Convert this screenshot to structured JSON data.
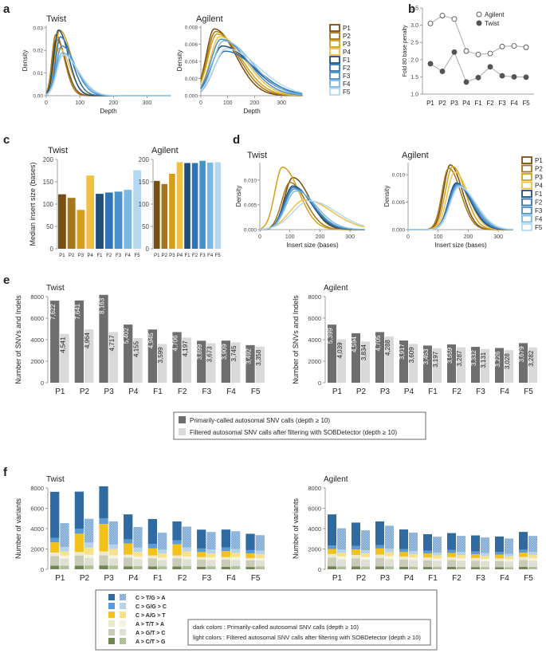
{
  "figure": {
    "panel_letters": [
      "a",
      "b",
      "c",
      "d",
      "e",
      "f"
    ],
    "colors": {
      "P1": "#7a4e0e",
      "P2": "#a6761d",
      "P3": "#d4a017",
      "P4": "#f0c043",
      "F1": "#1f4e79",
      "F2": "#2e75b6",
      "F3": "#4a90c8",
      "F4": "#7ab8e4",
      "F5": "#b5d8f2",
      "bar_dark": "#6e6e6e",
      "bar_light": "#d9d9d9"
    }
  },
  "chart_data": [
    {
      "id": "a-twist",
      "panel": "a",
      "type": "line",
      "title": "Twist",
      "xlabel": "Depth",
      "ylabel": "Density",
      "xlim": [
        0,
        370
      ],
      "ylim": [
        0,
        0.031
      ],
      "xticks": [
        0,
        100,
        200,
        300
      ],
      "yticks": [
        0.0,
        0.01,
        0.02,
        0.03
      ],
      "ytick_labels": [
        "0.00",
        "0.01",
        "0.02",
        "0.03"
      ],
      "curves": [
        {
          "name": "P1",
          "peak": 30,
          "sd_left": 12,
          "sd_right": 28,
          "height": 0.025
        },
        {
          "name": "P2",
          "peak": 28,
          "sd_left": 11,
          "sd_right": 26,
          "height": 0.027
        },
        {
          "name": "P3",
          "peak": 40,
          "sd_left": 14,
          "sd_right": 34,
          "height": 0.029
        },
        {
          "name": "P4",
          "peak": 38,
          "sd_left": 14,
          "sd_right": 32,
          "height": 0.021
        },
        {
          "name": "F1",
          "peak": 36,
          "sd_left": 13,
          "sd_right": 30,
          "height": 0.029
        },
        {
          "name": "F2",
          "peak": 42,
          "sd_left": 14,
          "sd_right": 34,
          "height": 0.026
        },
        {
          "name": "F3",
          "peak": 46,
          "sd_left": 16,
          "sd_right": 40,
          "height": 0.022
        },
        {
          "name": "F4",
          "peak": 48,
          "sd_left": 18,
          "sd_right": 44,
          "height": 0.019
        },
        {
          "name": "F5",
          "peak": 50,
          "sd_left": 18,
          "sd_right": 46,
          "height": 0.018
        }
      ]
    },
    {
      "id": "a-agilent",
      "panel": "a",
      "type": "line",
      "title": "Agilent",
      "xlabel": "Depth",
      "ylabel": "Density",
      "xlim": [
        0,
        380
      ],
      "ylim": [
        0,
        0.0082
      ],
      "xticks": [
        0,
        100,
        200,
        300
      ],
      "yticks": [
        0.0,
        0.002,
        0.004,
        0.006,
        0.008
      ],
      "ytick_labels": [
        "0.000",
        "0.002",
        "0.004",
        "0.006",
        "0.008"
      ],
      "curves": [
        {
          "name": "P1",
          "peak": 50,
          "sd_left": 30,
          "sd_right": 80,
          "height": 0.0078
        },
        {
          "name": "P2",
          "peak": 55,
          "sd_left": 32,
          "sd_right": 85,
          "height": 0.0075
        },
        {
          "name": "P3",
          "peak": 60,
          "sd_left": 34,
          "sd_right": 90,
          "height": 0.0072
        },
        {
          "name": "P4",
          "peak": 70,
          "sd_left": 36,
          "sd_right": 95,
          "height": 0.0069
        },
        {
          "name": "F1",
          "peak": 80,
          "sd_left": 40,
          "sd_right": 110,
          "height": 0.0058
        },
        {
          "name": "F2",
          "peak": 90,
          "sd_left": 42,
          "sd_right": 115,
          "height": 0.0052
        },
        {
          "name": "F3",
          "peak": 75,
          "sd_left": 38,
          "sd_right": 100,
          "height": 0.0066
        },
        {
          "name": "F4",
          "peak": 85,
          "sd_left": 40,
          "sd_right": 105,
          "height": 0.0064
        },
        {
          "name": "F5",
          "peak": 95,
          "sd_left": 45,
          "sd_right": 120,
          "height": 0.0055
        }
      ]
    },
    {
      "id": "a-legend",
      "panel": "a",
      "type": "legend",
      "entries": [
        "P1",
        "P2",
        "P3",
        "P4",
        "F1",
        "F2",
        "F3",
        "F4",
        "F5"
      ]
    },
    {
      "id": "b",
      "panel": "b",
      "type": "scatter",
      "ylabel": "Fold 80 base penalty",
      "categories": [
        "P1",
        "P2",
        "P3",
        "P4",
        "F1",
        "F2",
        "F3",
        "F4",
        "F5"
      ],
      "ylim": [
        1.0,
        3.5
      ],
      "yticks": [
        1.0,
        1.5,
        2.0,
        2.5,
        3.0,
        3.5
      ],
      "ytick_labels": [
        "1.0",
        "1.5",
        "2.0",
        "2.5",
        "3.0",
        "3.5"
      ],
      "series": [
        {
          "name": "Agilent",
          "marker": "open",
          "values": [
            3.05,
            3.28,
            3.18,
            2.25,
            2.15,
            2.18,
            2.38,
            2.4,
            2.36
          ]
        },
        {
          "name": "Twist",
          "marker": "filled",
          "values": [
            1.88,
            1.66,
            2.22,
            1.35,
            1.48,
            1.79,
            1.53,
            1.5,
            1.49
          ]
        }
      ]
    },
    {
      "id": "c-twist",
      "panel": "c",
      "type": "bar",
      "title": "Twist",
      "ylabel": "Median insert size (bases)",
      "categories": [
        "P1",
        "P2",
        "P3",
        "P4",
        "F1",
        "F2",
        "F3",
        "F4",
        "F5"
      ],
      "values": [
        122,
        114,
        87,
        164,
        123,
        126,
        128,
        132,
        176
      ],
      "ylim": [
        0,
        200
      ],
      "yticks": [
        0,
        50,
        100,
        150,
        200
      ]
    },
    {
      "id": "c-agilent",
      "panel": "c",
      "type": "bar",
      "title": "Agilent",
      "categories": [
        "P1",
        "P2",
        "P3",
        "P4",
        "F1",
        "F2",
        "F3",
        "F4",
        "F5"
      ],
      "values": [
        152,
        145,
        168,
        194,
        192,
        192,
        197,
        193,
        194
      ],
      "ylim": [
        0,
        200
      ],
      "yticks": [
        0,
        50,
        100,
        150,
        200
      ]
    },
    {
      "id": "d-twist",
      "panel": "d",
      "type": "line",
      "title": "Twist",
      "xlabel": "Insert size (bases)",
      "ylabel": "Density",
      "xlim": [
        0,
        350
      ],
      "ylim": [
        0,
        0.0135
      ],
      "xticks": [
        0,
        100,
        200,
        300
      ],
      "yticks": [
        0.0,
        0.005,
        0.01
      ],
      "ytick_labels": [
        "0.000",
        "0.005",
        "0.010"
      ],
      "curves": [
        {
          "name": "P1",
          "peak": 110,
          "sd_left": 28,
          "sd_right": 55,
          "height": 0.0105
        },
        {
          "name": "P2",
          "peak": 100,
          "sd_left": 27,
          "sd_right": 52,
          "height": 0.0095
        },
        {
          "name": "P3",
          "peak": 75,
          "sd_left": 25,
          "sd_right": 55,
          "height": 0.0126
        },
        {
          "name": "P4",
          "peak": 150,
          "sd_left": 50,
          "sd_right": 90,
          "height": 0.006
        },
        {
          "name": "F1",
          "peak": 110,
          "sd_left": 30,
          "sd_right": 60,
          "height": 0.0088
        },
        {
          "name": "F2",
          "peak": 112,
          "sd_left": 31,
          "sd_right": 62,
          "height": 0.0085
        },
        {
          "name": "F3",
          "peak": 115,
          "sd_left": 32,
          "sd_right": 64,
          "height": 0.0082
        },
        {
          "name": "F4",
          "peak": 120,
          "sd_left": 34,
          "sd_right": 68,
          "height": 0.0078
        },
        {
          "name": "F5",
          "peak": 165,
          "sd_left": 55,
          "sd_right": 90,
          "height": 0.0058
        }
      ]
    },
    {
      "id": "d-agilent",
      "panel": "d",
      "type": "line",
      "title": "Agilent",
      "xlabel": "Insert size (bases)",
      "ylabel": "Density",
      "xlim": [
        0,
        350
      ],
      "ylim": [
        0,
        0.0122
      ],
      "xticks": [
        0,
        100,
        200,
        300
      ],
      "yticks": [
        0.0,
        0.005,
        0.01
      ],
      "ytick_labels": [
        "0.000",
        "0.005",
        "0.010"
      ],
      "curves": [
        {
          "name": "P1",
          "peak": 140,
          "sd_left": 22,
          "sd_right": 40,
          "height": 0.0118
        },
        {
          "name": "P2",
          "peak": 135,
          "sd_left": 22,
          "sd_right": 40,
          "height": 0.0112
        },
        {
          "name": "P3",
          "peak": 148,
          "sd_left": 24,
          "sd_right": 42,
          "height": 0.0115
        },
        {
          "name": "P4",
          "peak": 155,
          "sd_left": 25,
          "sd_right": 45,
          "height": 0.0105
        },
        {
          "name": "F1",
          "peak": 160,
          "sd_left": 26,
          "sd_right": 48,
          "height": 0.0085
        },
        {
          "name": "F2",
          "peak": 162,
          "sd_left": 27,
          "sd_right": 50,
          "height": 0.0083
        },
        {
          "name": "F3",
          "peak": 165,
          "sd_left": 28,
          "sd_right": 52,
          "height": 0.0082
        },
        {
          "name": "F4",
          "peak": 168,
          "sd_left": 28,
          "sd_right": 54,
          "height": 0.008
        },
        {
          "name": "F5",
          "peak": 170,
          "sd_left": 30,
          "sd_right": 56,
          "height": 0.0078
        }
      ]
    },
    {
      "id": "d-legend",
      "panel": "d",
      "type": "legend",
      "entries": [
        "P1",
        "P2",
        "P3",
        "P4",
        "F1",
        "F2",
        "F3",
        "F4",
        "F5"
      ]
    },
    {
      "id": "e-twist",
      "panel": "e",
      "type": "bar",
      "title": "Twist",
      "ylabel": "Number of SNVs and Indels",
      "categories": [
        "P1",
        "P2",
        "P3",
        "P4",
        "F1",
        "F2",
        "F3",
        "F4",
        "F5"
      ],
      "ylim": [
        0,
        8000
      ],
      "yticks": [
        0,
        2000,
        4000,
        6000,
        8000
      ],
      "series": [
        {
          "name": "Primarily-called",
          "values": [
            7622,
            7641,
            8163,
            5402,
            4945,
            4706,
            3899,
            3909,
            3492
          ],
          "labels": [
            "7,622",
            "7,641",
            "8,163",
            "5,402",
            "4,945",
            "4,706",
            "3,899",
            "3,909",
            "3,492"
          ]
        },
        {
          "name": "Filtered",
          "values": [
            4541,
            4964,
            4717,
            4155,
            3599,
            4197,
            3673,
            3745,
            3358
          ],
          "labels": [
            "4,541",
            "4,964",
            "4,717",
            "4,155",
            "3,599",
            "4,197",
            "3,673",
            "3,745",
            "3,358"
          ]
        }
      ]
    },
    {
      "id": "e-agilent",
      "panel": "e",
      "type": "bar",
      "title": "Agilent",
      "ylabel": "Number of SNVs and Indels",
      "categories": [
        "P1",
        "P2",
        "P3",
        "P4",
        "F1",
        "F2",
        "F3",
        "F4",
        "F5"
      ],
      "ylim": [
        0,
        8000
      ],
      "yticks": [
        0,
        2000,
        4000,
        6000,
        8000
      ],
      "series": [
        {
          "name": "Primarily-called",
          "values": [
            5399,
            4594,
            4705,
            3917,
            3453,
            3559,
            3332,
            3226,
            3679
          ],
          "labels": [
            "5,399",
            "4,594",
            "4,705",
            "3,917",
            "3,453",
            "3,559",
            "3,332",
            "3,226",
            "3,679"
          ]
        },
        {
          "name": "Filtered",
          "values": [
            4039,
            3834,
            4288,
            3609,
            3197,
            3287,
            3131,
            3028,
            3282
          ],
          "labels": [
            "4,039",
            "3,834",
            "4,288",
            "3,609",
            "3,197",
            "3,287",
            "3,131",
            "3,028",
            "3,282"
          ]
        }
      ]
    },
    {
      "id": "e-legend",
      "panel": "e",
      "type": "legend",
      "entries": [
        "Primarily-called autosomal SNV calls (depth ≥ 10)",
        "Filtered autosomal  SNV calls after filtering with SOBDetector (depth ≥ 10)"
      ]
    },
    {
      "id": "f-twist",
      "panel": "f",
      "type": "bar",
      "stacked": true,
      "title": "Twist",
      "ylabel": "Number of variants",
      "categories": [
        "P1",
        "P2",
        "P3",
        "P4",
        "F1",
        "F2",
        "F3",
        "F4",
        "F5"
      ],
      "ylim": [
        0,
        8000
      ],
      "yticks": [
        0,
        2000,
        4000,
        6000,
        8000
      ],
      "stack_order": [
        "A > C/T > G",
        "A > G/T > C",
        "A > T/T > A",
        "C > A/G > T",
        "C > G/G > C",
        "C > T/G > A"
      ],
      "dark": [
        [
          350,
          950,
          350,
          1000,
          450,
          4522
        ],
        [
          350,
          1000,
          350,
          1800,
          500,
          3641
        ],
        [
          380,
          1000,
          380,
          2700,
          550,
          3153
        ],
        [
          300,
          850,
          300,
          1100,
          400,
          2452
        ],
        [
          280,
          800,
          280,
          700,
          450,
          2435
        ],
        [
          280,
          800,
          280,
          1100,
          400,
          1846
        ],
        [
          250,
          700,
          250,
          500,
          350,
          1849
        ],
        [
          250,
          700,
          250,
          600,
          350,
          1759
        ],
        [
          230,
          650,
          230,
          450,
          330,
          1602
        ]
      ],
      "light": [
        [
          350,
          700,
          300,
          400,
          450,
          2341
        ],
        [
          380,
          750,
          300,
          700,
          500,
          2334
        ],
        [
          360,
          720,
          300,
          600,
          450,
          2287
        ],
        [
          330,
          650,
          280,
          450,
          420,
          2025
        ],
        [
          300,
          600,
          250,
          400,
          380,
          1669
        ],
        [
          330,
          650,
          280,
          500,
          400,
          2037
        ],
        [
          300,
          600,
          260,
          400,
          380,
          1733
        ],
        [
          310,
          620,
          260,
          420,
          380,
          1755
        ],
        [
          280,
          580,
          240,
          380,
          350,
          1528
        ]
      ]
    },
    {
      "id": "f-agilent",
      "panel": "f",
      "type": "bar",
      "stacked": true,
      "title": "Agilent",
      "ylabel": "Number of variants",
      "categories": [
        "P1",
        "P2",
        "P3",
        "P4",
        "F1",
        "F2",
        "F3",
        "F4",
        "F5"
      ],
      "ylim": [
        0,
        8000
      ],
      "yticks": [
        0,
        2000,
        4000,
        6000,
        8000
      ],
      "stack_order": [
        "A > C/T > G",
        "A > G/T > C",
        "A > T/T > A",
        "C > A/G > T",
        "C > G/G > C",
        "C > T/G > A"
      ],
      "dark": [
        [
          300,
          850,
          350,
          500,
          350,
          3049
        ],
        [
          280,
          800,
          330,
          550,
          330,
          2304
        ],
        [
          290,
          820,
          340,
          600,
          340,
          2315
        ],
        [
          250,
          700,
          300,
          450,
          300,
          1917
        ],
        [
          230,
          650,
          280,
          400,
          280,
          1613
        ],
        [
          240,
          660,
          290,
          420,
          290,
          1659
        ],
        [
          220,
          620,
          270,
          380,
          270,
          1572
        ],
        [
          210,
          600,
          260,
          370,
          260,
          1526
        ],
        [
          240,
          680,
          290,
          430,
          290,
          1749
        ]
      ],
      "light": [
        [
          280,
          700,
          280,
          350,
          330,
          2099
        ],
        [
          270,
          680,
          270,
          340,
          320,
          1954
        ],
        [
          290,
          720,
          290,
          380,
          340,
          2268
        ],
        [
          250,
          650,
          260,
          330,
          300,
          1819
        ],
        [
          230,
          600,
          240,
          300,
          280,
          1547
        ],
        [
          240,
          610,
          250,
          310,
          290,
          1587
        ],
        [
          220,
          580,
          230,
          290,
          270,
          1541
        ],
        [
          210,
          560,
          220,
          280,
          260,
          1498
        ],
        [
          240,
          610,
          250,
          310,
          290,
          1582
        ]
      ]
    },
    {
      "id": "f-legend",
      "panel": "f",
      "type": "legend",
      "entries": [
        {
          "label": "C > T/G > A",
          "dark": "#2f6aa3",
          "light": "#9ec1e3"
        },
        {
          "label": "C > G/G > C",
          "dark": "#5b9bd5",
          "light": "#c5dcf0"
        },
        {
          "label": "C > A/G > T",
          "dark": "#f2c21b",
          "light": "#f9e69a"
        },
        {
          "label": "A > T/T > A",
          "dark": "#eee9c9",
          "light": "#f7f4e3"
        },
        {
          "label": "A > G/T > C",
          "dark": "#c8cbb8",
          "light": "#e2e4d8"
        },
        {
          "label": "A > C/T > G",
          "dark": "#6f8553",
          "light": "#b9c8a5"
        }
      ],
      "notes": [
        "dark colors : Primarily-called autosomal SNV calls (depth ≥ 10)",
        "light colors : Filtered autosomal  SNV calls after filtering with SOBDetector (depth ≥ 10)"
      ]
    }
  ]
}
